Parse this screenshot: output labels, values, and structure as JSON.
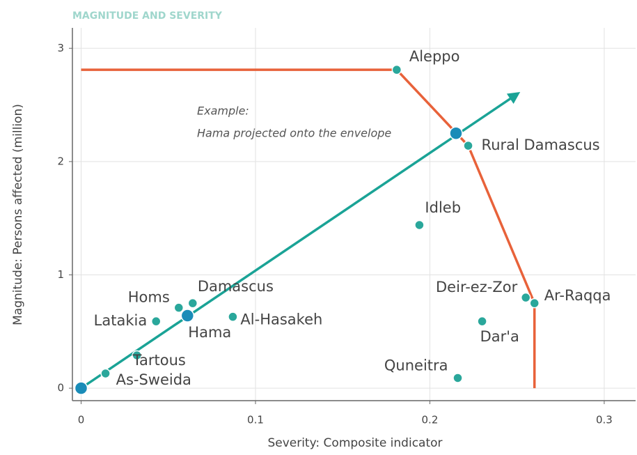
{
  "chart_data": {
    "type": "scatter",
    "title": "MAGNITUDE AND SEVERITY",
    "x_label": "Severity: Composite indicator",
    "y_label": "Magnitude: Persons affected (million)",
    "annotation": [
      "Example:",
      "Hama projected onto the envelope"
    ],
    "xlim": [
      -0.005,
      0.318
    ],
    "ylim": [
      -0.11,
      3.18
    ],
    "xticks": [
      0,
      0.1,
      0.2,
      0.3
    ],
    "yticks": [
      0,
      1,
      2,
      3
    ],
    "grid": true,
    "point_color": "#2aa79b",
    "highlight_color": "#1a8cb8",
    "points": [
      {
        "name": "Aleppo",
        "x": 0.181,
        "y": 2.81
      },
      {
        "name": "Rural Damascus",
        "x": 0.222,
        "y": 2.14
      },
      {
        "name": "Idleb",
        "x": 0.194,
        "y": 1.44
      },
      {
        "name": "Deir-ez-Zor",
        "x": 0.255,
        "y": 0.8
      },
      {
        "name": "Ar-Raqqa",
        "x": 0.26,
        "y": 0.75
      },
      {
        "name": "Dar'a",
        "x": 0.23,
        "y": 0.59
      },
      {
        "name": "Quneitra",
        "x": 0.216,
        "y": 0.09
      },
      {
        "name": "Damascus",
        "x": 0.064,
        "y": 0.75
      },
      {
        "name": "Homs",
        "x": 0.056,
        "y": 0.71
      },
      {
        "name": "Hama",
        "x": 0.061,
        "y": 0.64,
        "highlight": true
      },
      {
        "name": "Al-Hasakeh",
        "x": 0.087,
        "y": 0.63
      },
      {
        "name": "Latakia",
        "x": 0.043,
        "y": 0.59
      },
      {
        "name": "Tartous",
        "x": 0.032,
        "y": 0.29
      },
      {
        "name": "As-Sweida",
        "x": 0.014,
        "y": 0.13
      }
    ],
    "envelope": {
      "color": "#e8623a",
      "x": [
        0,
        0.181,
        0.222,
        0.26,
        0.26
      ],
      "y": [
        2.81,
        2.81,
        2.14,
        0.75,
        0
      ]
    },
    "projection": {
      "color": "#1aa396",
      "x": [
        0,
        0.2495
      ],
      "y": [
        0,
        2.59
      ]
    },
    "projection_points": {
      "x": [
        0,
        0.215
      ],
      "y": [
        0,
        2.25
      ]
    }
  }
}
